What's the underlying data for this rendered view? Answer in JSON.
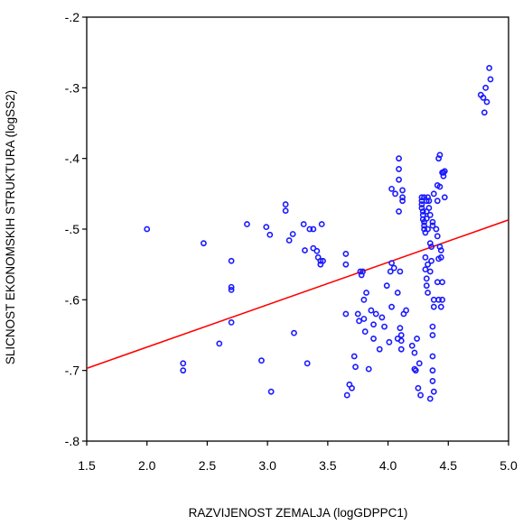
{
  "chart_data": {
    "type": "scatter",
    "title": "",
    "xlabel": "RAZVIJENOST ZEMALJA (logGDPPC1)",
    "ylabel": "SLICNOST EKONOMSKIH STRUKTURA (logSS2)",
    "xlim": [
      1.5,
      5.0
    ],
    "ylim": [
      -0.8,
      -0.2
    ],
    "xticks": [
      "1.5",
      "2.0",
      "2.5",
      "3.0",
      "3.5",
      "4.0",
      "4.5",
      "5.0"
    ],
    "yticks": [
      "-.2",
      "-.3",
      "-.4",
      "-.5",
      "-.6",
      "-.7",
      "-.8"
    ],
    "grid": false,
    "marker_color": "#1a1aff",
    "fit_line_color": "#ff0000",
    "fit_line": {
      "x": [
        1.5,
        5.0
      ],
      "y": [
        -0.697,
        -0.487
      ]
    },
    "points": [
      [
        2.0,
        -0.5
      ],
      [
        2.3,
        -0.69
      ],
      [
        2.3,
        -0.7
      ],
      [
        2.47,
        -0.52
      ],
      [
        2.6,
        -0.662
      ],
      [
        2.7,
        -0.545
      ],
      [
        2.7,
        -0.582
      ],
      [
        2.7,
        -0.586
      ],
      [
        2.7,
        -0.632
      ],
      [
        2.83,
        -0.493
      ],
      [
        2.95,
        -0.686
      ],
      [
        2.99,
        -0.497
      ],
      [
        3.02,
        -0.508
      ],
      [
        3.03,
        -0.73
      ],
      [
        3.15,
        -0.465
      ],
      [
        3.15,
        -0.474
      ],
      [
        3.18,
        -0.516
      ],
      [
        3.21,
        -0.507
      ],
      [
        3.22,
        -0.647
      ],
      [
        3.3,
        -0.493
      ],
      [
        3.31,
        -0.53
      ],
      [
        3.33,
        -0.69
      ],
      [
        3.35,
        -0.5
      ],
      [
        3.38,
        -0.527
      ],
      [
        3.38,
        -0.5
      ],
      [
        3.41,
        -0.531
      ],
      [
        3.42,
        -0.54
      ],
      [
        3.44,
        -0.545
      ],
      [
        3.44,
        -0.55
      ],
      [
        3.45,
        -0.493
      ],
      [
        3.46,
        -0.545
      ],
      [
        3.65,
        -0.535
      ],
      [
        3.65,
        -0.55
      ],
      [
        3.65,
        -0.62
      ],
      [
        3.66,
        -0.735
      ],
      [
        3.68,
        -0.72
      ],
      [
        3.7,
        -0.725
      ],
      [
        3.72,
        -0.68
      ],
      [
        3.73,
        -0.695
      ],
      [
        3.75,
        -0.62
      ],
      [
        3.76,
        -0.63
      ],
      [
        3.77,
        -0.56
      ],
      [
        3.78,
        -0.565
      ],
      [
        3.79,
        -0.56
      ],
      [
        3.8,
        -0.6
      ],
      [
        3.8,
        -0.627
      ],
      [
        3.81,
        -0.645
      ],
      [
        3.82,
        -0.59
      ],
      [
        3.84,
        -0.698
      ],
      [
        3.86,
        -0.615
      ],
      [
        3.88,
        -0.655
      ],
      [
        3.88,
        -0.635
      ],
      [
        3.9,
        -0.62
      ],
      [
        3.93,
        -0.67
      ],
      [
        3.95,
        -0.625
      ],
      [
        3.97,
        -0.638
      ],
      [
        3.99,
        -0.58
      ],
      [
        4.01,
        -0.66
      ],
      [
        4.02,
        -0.56
      ],
      [
        4.03,
        -0.443
      ],
      [
        4.03,
        -0.548
      ],
      [
        4.03,
        -0.61
      ],
      [
        4.05,
        -0.555
      ],
      [
        4.06,
        -0.45
      ],
      [
        4.08,
        -0.59
      ],
      [
        4.08,
        -0.655
      ],
      [
        4.09,
        -0.4
      ],
      [
        4.09,
        -0.415
      ],
      [
        4.09,
        -0.43
      ],
      [
        4.09,
        -0.475
      ],
      [
        4.1,
        -0.56
      ],
      [
        4.1,
        -0.64
      ],
      [
        4.11,
        -0.65
      ],
      [
        4.11,
        -0.658
      ],
      [
        4.11,
        -0.67
      ],
      [
        4.12,
        -0.445
      ],
      [
        4.12,
        -0.455
      ],
      [
        4.12,
        -0.46
      ],
      [
        4.13,
        -0.62
      ],
      [
        4.15,
        -0.615
      ],
      [
        4.2,
        -0.665
      ],
      [
        4.22,
        -0.675
      ],
      [
        4.22,
        -0.698
      ],
      [
        4.23,
        -0.7
      ],
      [
        4.24,
        -0.655
      ],
      [
        4.25,
        -0.725
      ],
      [
        4.26,
        -0.69
      ],
      [
        4.27,
        -0.735
      ],
      [
        4.28,
        -0.455
      ],
      [
        4.28,
        -0.46
      ],
      [
        4.28,
        -0.465
      ],
      [
        4.28,
        -0.47
      ],
      [
        4.29,
        -0.475
      ],
      [
        4.29,
        -0.48
      ],
      [
        4.29,
        -0.486
      ],
      [
        4.3,
        -0.455
      ],
      [
        4.3,
        -0.49
      ],
      [
        4.3,
        -0.495
      ],
      [
        4.3,
        -0.5
      ],
      [
        4.31,
        -0.505
      ],
      [
        4.31,
        -0.54
      ],
      [
        4.31,
        -0.557
      ],
      [
        4.32,
        -0.46
      ],
      [
        4.32,
        -0.475
      ],
      [
        4.32,
        -0.485
      ],
      [
        4.32,
        -0.57
      ],
      [
        4.32,
        -0.58
      ],
      [
        4.33,
        -0.455
      ],
      [
        4.33,
        -0.5
      ],
      [
        4.33,
        -0.55
      ],
      [
        4.33,
        -0.59
      ],
      [
        4.34,
        -0.46
      ],
      [
        4.34,
        -0.47
      ],
      [
        4.35,
        -0.48
      ],
      [
        4.35,
        -0.52
      ],
      [
        4.35,
        -0.56
      ],
      [
        4.35,
        -0.74
      ],
      [
        4.36,
        -0.525
      ],
      [
        4.36,
        -0.545
      ],
      [
        4.37,
        -0.49
      ],
      [
        4.37,
        -0.495
      ],
      [
        4.37,
        -0.638
      ],
      [
        4.37,
        -0.65
      ],
      [
        4.37,
        -0.68
      ],
      [
        4.37,
        -0.7
      ],
      [
        4.37,
        -0.715
      ],
      [
        4.38,
        -0.45
      ],
      [
        4.38,
        -0.6
      ],
      [
        4.38,
        -0.61
      ],
      [
        4.38,
        -0.73
      ],
      [
        4.4,
        -0.5
      ],
      [
        4.41,
        -0.438
      ],
      [
        4.41,
        -0.46
      ],
      [
        4.41,
        -0.51
      ],
      [
        4.41,
        -0.575
      ],
      [
        4.42,
        -0.4
      ],
      [
        4.42,
        -0.542
      ],
      [
        4.42,
        -0.6
      ],
      [
        4.43,
        -0.395
      ],
      [
        4.43,
        -0.44
      ],
      [
        4.43,
        -0.525
      ],
      [
        4.44,
        -0.53
      ],
      [
        4.44,
        -0.54
      ],
      [
        4.44,
        -0.61
      ],
      [
        4.45,
        -0.42
      ],
      [
        4.45,
        -0.575
      ],
      [
        4.45,
        -0.6
      ],
      [
        4.46,
        -0.42
      ],
      [
        4.46,
        -0.425
      ],
      [
        4.47,
        -0.418
      ],
      [
        4.47,
        -0.455
      ],
      [
        4.77,
        -0.31
      ],
      [
        4.79,
        -0.314
      ],
      [
        4.8,
        -0.335
      ],
      [
        4.81,
        -0.3
      ],
      [
        4.82,
        -0.32
      ],
      [
        4.84,
        -0.272
      ],
      [
        4.85,
        -0.288
      ]
    ]
  }
}
